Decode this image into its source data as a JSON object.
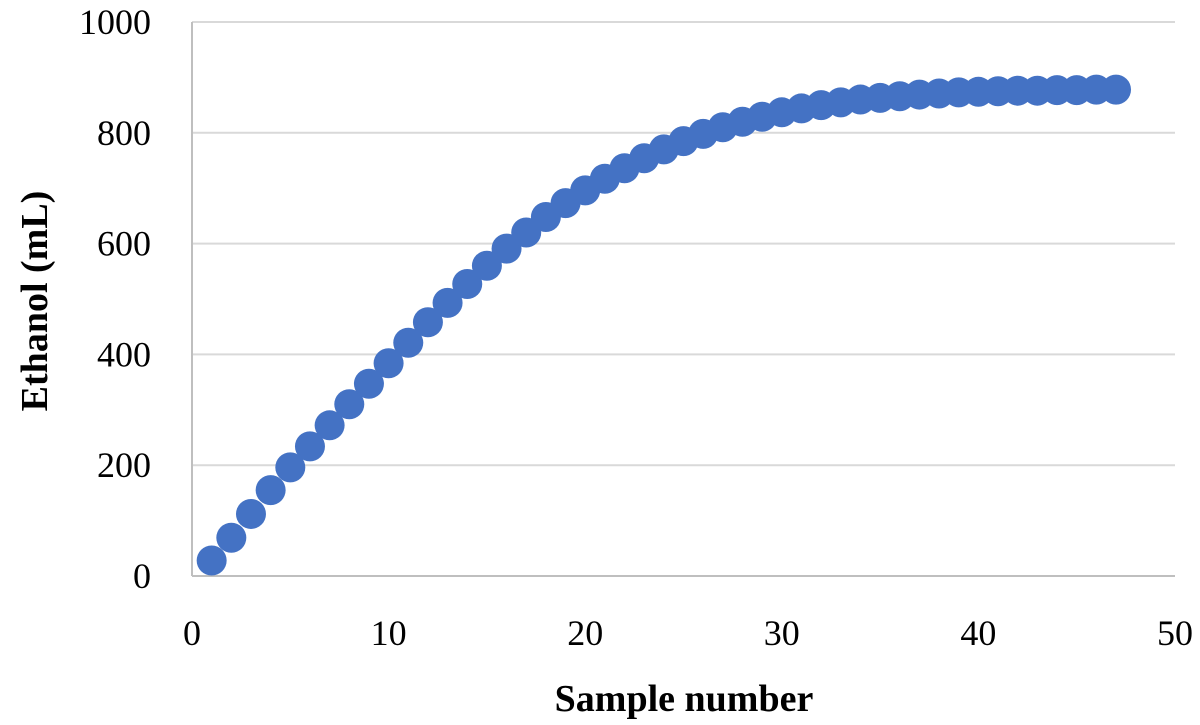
{
  "chart_data": {
    "type": "scatter",
    "title": "",
    "xlabel": "Sample number",
    "ylabel": "Ethanol (mL)",
    "xlim": [
      0,
      50
    ],
    "ylim": [
      0,
      1000
    ],
    "x_ticks": [
      "0",
      "10",
      "20",
      "30",
      "40",
      "50"
    ],
    "y_ticks": [
      "0",
      "200",
      "400",
      "600",
      "800",
      "1000"
    ],
    "grid": "horizontal",
    "legend": "none",
    "series": [
      {
        "color": "#4472C4",
        "x": [
          1,
          2,
          3,
          4,
          5,
          6,
          7,
          8,
          9,
          10,
          11,
          12,
          13,
          14,
          15,
          16,
          17,
          18,
          19,
          20,
          21,
          22,
          23,
          24,
          25,
          26,
          27,
          28,
          29,
          30,
          31,
          32,
          33,
          34,
          35,
          36,
          37,
          38,
          39,
          40,
          41,
          42,
          43,
          44,
          45,
          46,
          47
        ],
        "y": [
          28,
          69,
          112,
          155,
          196,
          234,
          272,
          310,
          347,
          384,
          421,
          458,
          493,
          527,
          560,
          591,
          620,
          648,
          673,
          696,
          717,
          736,
          754,
          770,
          785,
          798,
          810,
          820,
          829,
          837,
          844,
          850,
          855,
          860,
          863,
          866,
          869,
          871,
          873,
          874,
          875,
          876,
          876,
          877,
          877,
          878,
          878
        ]
      }
    ]
  },
  "colors": {
    "marker": "#4472C4",
    "grid": "#D9D9D9",
    "axis": "#BFBFBF"
  }
}
